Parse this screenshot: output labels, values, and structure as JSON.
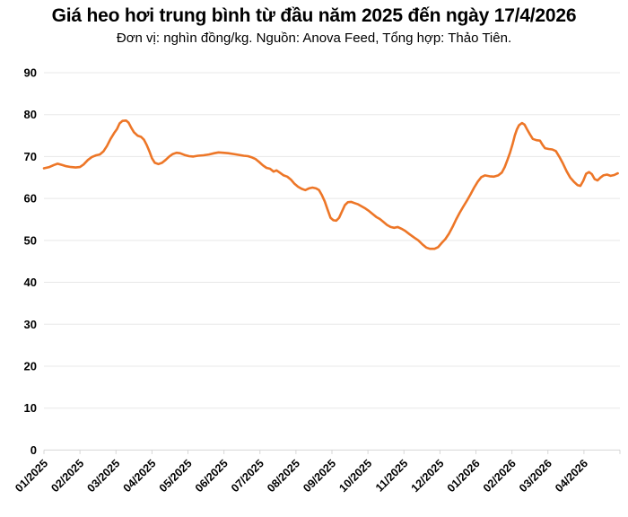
{
  "header": {
    "title": "Giá heo hơi trung bình từ đầu năm 2025 đến ngày 17/4/2026",
    "subtitle": "Đơn vị: nghìn đồng/kg. Nguồn: Anova Feed, Tổng hợp: Thảo Tiên."
  },
  "chart_data": {
    "type": "line",
    "title": "Giá heo hơi trung bình từ đầu năm 2025 đến ngày 17/4/2026",
    "unit_label": "nghìn đồng/kg",
    "source_label": "Anova Feed",
    "compiled_by_label": "Thảo Tiên",
    "ylim": [
      0,
      90
    ],
    "y_ticks": [
      0,
      10,
      20,
      30,
      40,
      50,
      60,
      70,
      80,
      90
    ],
    "grid": "horizontal",
    "legend": "none",
    "line_color": "#ED7627",
    "x_tick_labels": [
      "01/2025",
      "02/2025",
      "03/2025",
      "04/2025",
      "05/2025",
      "06/2025",
      "07/2025",
      "08/2025",
      "09/2025",
      "10/2025",
      "11/2025",
      "12/2025",
      "01/2026",
      "02/2026",
      "03/2026",
      "04/2026"
    ],
    "series": [
      {
        "name": "Giá heo hơi trung bình",
        "points_note": "x = month index from 01/2025 tick (fractional), y = price in nghin dong/kg",
        "points": [
          [
            0,
            67.2
          ],
          [
            0.15,
            67.5
          ],
          [
            0.28,
            68
          ],
          [
            0.38,
            68.3
          ],
          [
            0.5,
            68
          ],
          [
            0.62,
            67.7
          ],
          [
            0.75,
            67.5
          ],
          [
            0.88,
            67.4
          ],
          [
            1,
            67.5
          ],
          [
            1.1,
            68.1
          ],
          [
            1.22,
            69.2
          ],
          [
            1.33,
            69.9
          ],
          [
            1.45,
            70.3
          ],
          [
            1.55,
            70.5
          ],
          [
            1.65,
            71.2
          ],
          [
            1.75,
            72.5
          ],
          [
            1.85,
            74.2
          ],
          [
            1.95,
            75.6
          ],
          [
            2.03,
            76.6
          ],
          [
            2.1,
            77.9
          ],
          [
            2.18,
            78.5
          ],
          [
            2.28,
            78.6
          ],
          [
            2.35,
            78.1
          ],
          [
            2.43,
            76.8
          ],
          [
            2.5,
            75.8
          ],
          [
            2.6,
            75
          ],
          [
            2.7,
            74.7
          ],
          [
            2.78,
            74
          ],
          [
            2.85,
            72.8
          ],
          [
            2.93,
            71.2
          ],
          [
            3,
            69.6
          ],
          [
            3.08,
            68.5
          ],
          [
            3.18,
            68.2
          ],
          [
            3.28,
            68.5
          ],
          [
            3.38,
            69.2
          ],
          [
            3.48,
            70
          ],
          [
            3.58,
            70.6
          ],
          [
            3.68,
            70.9
          ],
          [
            3.78,
            70.8
          ],
          [
            3.9,
            70.4
          ],
          [
            4.03,
            70.1
          ],
          [
            4.15,
            70
          ],
          [
            4.28,
            70.2
          ],
          [
            4.43,
            70.3
          ],
          [
            4.58,
            70.5
          ],
          [
            4.73,
            70.8
          ],
          [
            4.85,
            71
          ],
          [
            4.98,
            70.9
          ],
          [
            5.12,
            70.8
          ],
          [
            5.27,
            70.6
          ],
          [
            5.42,
            70.4
          ],
          [
            5.55,
            70.2
          ],
          [
            5.67,
            70.1
          ],
          [
            5.78,
            69.8
          ],
          [
            5.88,
            69.4
          ],
          [
            5.98,
            68.7
          ],
          [
            6.08,
            67.9
          ],
          [
            6.18,
            67.3
          ],
          [
            6.28,
            67.1
          ],
          [
            6.38,
            66.4
          ],
          [
            6.46,
            66.7
          ],
          [
            6.56,
            66.1
          ],
          [
            6.66,
            65.5
          ],
          [
            6.76,
            65.2
          ],
          [
            6.86,
            64.5
          ],
          [
            6.96,
            63.5
          ],
          [
            7.06,
            62.8
          ],
          [
            7.16,
            62.3
          ],
          [
            7.26,
            62
          ],
          [
            7.36,
            62.4
          ],
          [
            7.46,
            62.6
          ],
          [
            7.56,
            62.4
          ],
          [
            7.64,
            62
          ],
          [
            7.72,
            60.8
          ],
          [
            7.8,
            59.3
          ],
          [
            7.88,
            57.3
          ],
          [
            7.96,
            55.4
          ],
          [
            8.04,
            54.8
          ],
          [
            8.12,
            54.7
          ],
          [
            8.2,
            55.4
          ],
          [
            8.28,
            56.9
          ],
          [
            8.36,
            58.4
          ],
          [
            8.44,
            59.1
          ],
          [
            8.53,
            59.2
          ],
          [
            8.63,
            58.9
          ],
          [
            8.73,
            58.6
          ],
          [
            8.83,
            58.1
          ],
          [
            8.93,
            57.6
          ],
          [
            9.03,
            57
          ],
          [
            9.13,
            56.3
          ],
          [
            9.23,
            55.6
          ],
          [
            9.33,
            55.1
          ],
          [
            9.43,
            54.4
          ],
          [
            9.53,
            53.7
          ],
          [
            9.63,
            53.2
          ],
          [
            9.73,
            53
          ],
          [
            9.83,
            53.2
          ],
          [
            9.93,
            52.8
          ],
          [
            10.03,
            52.3
          ],
          [
            10.15,
            51.5
          ],
          [
            10.28,
            50.7
          ],
          [
            10.4,
            50
          ],
          [
            10.52,
            49
          ],
          [
            10.62,
            48.3
          ],
          [
            10.72,
            48
          ],
          [
            10.85,
            48
          ],
          [
            10.95,
            48.4
          ],
          [
            11.05,
            49.4
          ],
          [
            11.15,
            50.3
          ],
          [
            11.25,
            51.6
          ],
          [
            11.35,
            53.2
          ],
          [
            11.45,
            55
          ],
          [
            11.55,
            56.6
          ],
          [
            11.65,
            58.1
          ],
          [
            11.75,
            59.5
          ],
          [
            11.85,
            61
          ],
          [
            11.95,
            62.6
          ],
          [
            12.05,
            64
          ],
          [
            12.15,
            65.1
          ],
          [
            12.25,
            65.5
          ],
          [
            12.38,
            65.3
          ],
          [
            12.5,
            65.2
          ],
          [
            12.62,
            65.5
          ],
          [
            12.72,
            66.2
          ],
          [
            12.8,
            67.5
          ],
          [
            12.88,
            69.3
          ],
          [
            12.95,
            71
          ],
          [
            13.02,
            73
          ],
          [
            13.08,
            75
          ],
          [
            13.14,
            76.5
          ],
          [
            13.2,
            77.5
          ],
          [
            13.28,
            78
          ],
          [
            13.35,
            77.6
          ],
          [
            13.42,
            76.5
          ],
          [
            13.5,
            75.3
          ],
          [
            13.58,
            74.2
          ],
          [
            13.68,
            73.9
          ],
          [
            13.78,
            73.8
          ],
          [
            13.85,
            72.8
          ],
          [
            13.92,
            72
          ],
          [
            14.02,
            71.8
          ],
          [
            14.12,
            71.7
          ],
          [
            14.22,
            71.3
          ],
          [
            14.32,
            69.9
          ],
          [
            14.42,
            68.3
          ],
          [
            14.52,
            66.5
          ],
          [
            14.62,
            65
          ],
          [
            14.72,
            64
          ],
          [
            14.82,
            63.2
          ],
          [
            14.9,
            63
          ],
          [
            14.98,
            64.2
          ],
          [
            15.06,
            65.9
          ],
          [
            15.14,
            66.3
          ],
          [
            15.22,
            65.8
          ],
          [
            15.3,
            64.6
          ],
          [
            15.38,
            64.3
          ],
          [
            15.46,
            65
          ],
          [
            15.54,
            65.5
          ],
          [
            15.64,
            65.7
          ],
          [
            15.74,
            65.4
          ],
          [
            15.84,
            65.6
          ],
          [
            15.94,
            66
          ]
        ]
      }
    ]
  }
}
